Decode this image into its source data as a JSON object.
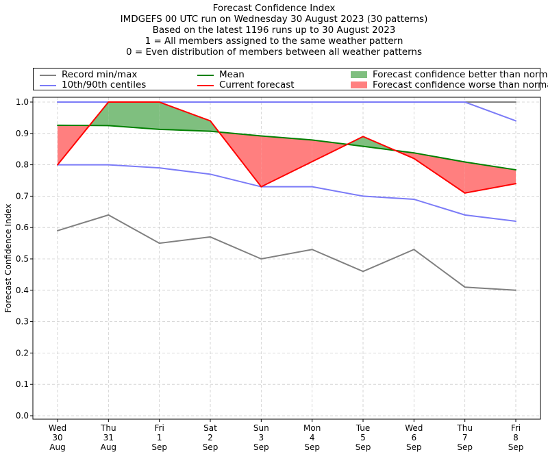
{
  "title_lines": [
    "Forecast Confidence Index",
    "IMDGEFS 00 UTC run on Wednesday 30 August 2023 (30 patterns)",
    "Based on the latest 1196 runs up to 30 August 2023",
    "1 = All members assigned to the same weather pattern",
    "0 = Even distribution of members between all weather patterns"
  ],
  "legend": [
    {
      "label": "Record min/max",
      "color": "#808080",
      "kind": "line"
    },
    {
      "label": "10th/90th centiles",
      "color": "#7b7bf7",
      "kind": "line"
    },
    {
      "label": "Mean",
      "color": "#008000",
      "kind": "line"
    },
    {
      "label": "Current forecast",
      "color": "#ff0000",
      "kind": "line"
    },
    {
      "label": "Forecast confidence better than normal",
      "color": "#7fbf7f",
      "kind": "fill"
    },
    {
      "label": "Forecast confidence worse than normal",
      "color": "#ff7f7f",
      "kind": "fill"
    }
  ],
  "chart_data": {
    "type": "line",
    "ylabel": "Forecast Confidence Index",
    "xlabel": "",
    "ylim": [
      0,
      1.0
    ],
    "yticks": [
      "0.0",
      "0.1",
      "0.2",
      "0.3",
      "0.4",
      "0.5",
      "0.6",
      "0.7",
      "0.8",
      "0.9",
      "1.0"
    ],
    "grid": true,
    "legend_position": "top",
    "categories": [
      [
        "Wed",
        "30",
        "Aug"
      ],
      [
        "Thu",
        "31",
        "Aug"
      ],
      [
        "Fri",
        "1",
        "Sep"
      ],
      [
        "Sat",
        "2",
        "Sep"
      ],
      [
        "Sun",
        "3",
        "Sep"
      ],
      [
        "Mon",
        "4",
        "Sep"
      ],
      [
        "Tue",
        "5",
        "Sep"
      ],
      [
        "Wed",
        "6",
        "Sep"
      ],
      [
        "Thu",
        "7",
        "Sep"
      ],
      [
        "Fri",
        "8",
        "Sep"
      ]
    ],
    "series": [
      {
        "name": "Record min/max",
        "role": "record_max",
        "color": "#808080",
        "values": [
          1.0,
          1.0,
          1.0,
          1.0,
          1.0,
          1.0,
          1.0,
          1.0,
          1.0,
          1.0
        ]
      },
      {
        "name": "Record min/max",
        "role": "record_min",
        "color": "#808080",
        "values": [
          0.59,
          0.64,
          0.55,
          0.57,
          0.5,
          0.53,
          0.46,
          0.53,
          0.41,
          0.4
        ]
      },
      {
        "name": "10th/90th centiles",
        "role": "p90",
        "color": "#7b7bf7",
        "values": [
          1.0,
          1.0,
          1.0,
          1.0,
          1.0,
          1.0,
          1.0,
          1.0,
          1.0,
          0.94
        ]
      },
      {
        "name": "10th/90th centiles",
        "role": "p10",
        "color": "#7b7bf7",
        "values": [
          0.8,
          0.8,
          0.79,
          0.77,
          0.73,
          0.73,
          0.7,
          0.69,
          0.64,
          0.62
        ]
      },
      {
        "name": "Mean",
        "role": "mean",
        "color": "#008000",
        "values": [
          0.926,
          0.925,
          0.913,
          0.907,
          0.892,
          0.879,
          0.859,
          0.838,
          0.809,
          0.784
        ]
      },
      {
        "name": "Current forecast",
        "role": "current",
        "color": "#ff0000",
        "values": [
          0.8,
          1.0,
          1.0,
          0.94,
          0.73,
          0.81,
          0.89,
          0.82,
          0.71,
          0.74
        ]
      }
    ],
    "fills": {
      "better": "#7fbf7f",
      "worse": "#ff7f7f"
    }
  }
}
